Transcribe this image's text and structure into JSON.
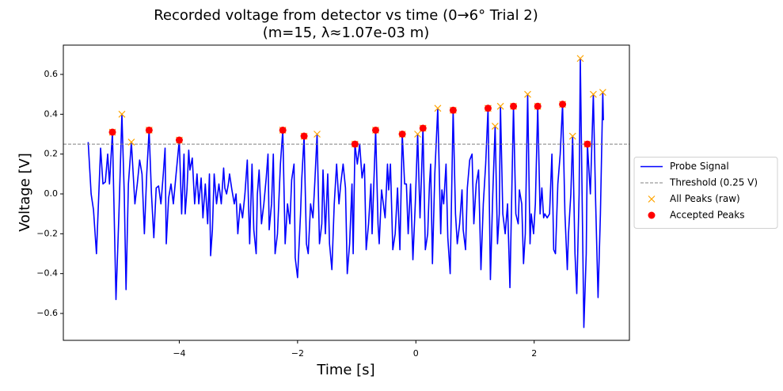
{
  "chart_data": {
    "type": "line",
    "title": [
      "Recorded voltage from detector vs time (0→6° Trial 2)",
      "(m=15, λ≈1.07e-03 m)"
    ],
    "x_label": "Time [s]",
    "y_label": "Voltage [V]",
    "xlim": [
      -5.96,
      3.61
    ],
    "ylim": [
      -0.735,
      0.747
    ],
    "xticks": [
      {
        "value": -4,
        "label": "−4"
      },
      {
        "value": -2,
        "label": "−2"
      },
      {
        "value": 0,
        "label": "0"
      },
      {
        "value": 2,
        "label": "2"
      }
    ],
    "yticks": [
      {
        "value": -0.6,
        "label": "−0.6"
      },
      {
        "value": -0.4,
        "label": "−0.4"
      },
      {
        "value": -0.2,
        "label": "−0.2"
      },
      {
        "value": 0,
        "label": "0.0"
      },
      0.2,
      0.4,
      0.6
    ],
    "legend": "right",
    "series": [
      {
        "name": "Probe Signal",
        "kind": "line",
        "color": "#0000ff",
        "x": [
          -5.54,
          -5.49,
          -5.45,
          -5.4,
          -5.33,
          -5.29,
          -5.25,
          -5.21,
          -5.18,
          -5.13,
          -5.07,
          -5.02,
          -4.97,
          -4.93,
          -4.9,
          -4.86,
          -4.81,
          -4.75,
          -4.71,
          -4.67,
          -4.63,
          -4.59,
          -4.55,
          -4.51,
          -4.47,
          -4.43,
          -4.39,
          -4.35,
          -4.31,
          -4.27,
          -4.24,
          -4.22,
          -4.18,
          -4.14,
          -4.1,
          -4.06,
          -4.0,
          -3.96,
          -3.92,
          -3.9,
          -3.87,
          -3.84,
          -3.82,
          -3.78,
          -3.74,
          -3.7,
          -3.67,
          -3.63,
          -3.6,
          -3.56,
          -3.52,
          -3.49,
          -3.47,
          -3.44,
          -3.41,
          -3.37,
          -3.33,
          -3.29,
          -3.25,
          -3.23,
          -3.2,
          -3.17,
          -3.15,
          -3.11,
          -3.07,
          -3.04,
          -3.01,
          -2.97,
          -2.93,
          -2.89,
          -2.85,
          -2.81,
          -2.77,
          -2.74,
          -2.7,
          -2.68,
          -2.65,
          -2.61,
          -2.57,
          -2.53,
          -2.5,
          -2.48,
          -2.44,
          -2.41,
          -2.38,
          -2.34,
          -2.29,
          -2.25,
          -2.21,
          -2.17,
          -2.13,
          -2.1,
          -2.06,
          -2.04,
          -2.0,
          -1.95,
          -1.93,
          -1.89,
          -1.85,
          -1.82,
          -1.78,
          -1.74,
          -1.71,
          -1.67,
          -1.63,
          -1.59,
          -1.57,
          -1.53,
          -1.49,
          -1.46,
          -1.42,
          -1.38,
          -1.34,
          -1.3,
          -1.27,
          -1.23,
          -1.19,
          -1.16,
          -1.12,
          -1.08,
          -1.06,
          -1.03,
          -0.99,
          -0.95,
          -0.91,
          -0.87,
          -0.84,
          -0.8,
          -0.76,
          -0.74,
          -0.68,
          -0.64,
          -0.62,
          -0.58,
          -0.55,
          -0.52,
          -0.48,
          -0.46,
          -0.43,
          -0.39,
          -0.35,
          -0.31,
          -0.27,
          -0.23,
          -0.19,
          -0.16,
          -0.13,
          -0.09,
          -0.05,
          -0.01,
          0.03,
          0.07,
          0.09,
          0.12,
          0.16,
          0.2,
          0.23,
          0.25,
          0.28,
          0.32,
          0.37,
          0.42,
          0.44,
          0.47,
          0.51,
          0.54,
          0.58,
          0.63,
          0.67,
          0.7,
          0.74,
          0.78,
          0.8,
          0.84,
          0.87,
          0.91,
          0.95,
          0.98,
          1.02,
          1.06,
          1.1,
          1.14,
          1.18,
          1.22,
          1.26,
          1.3,
          1.34,
          1.38,
          1.41,
          1.43,
          1.47,
          1.51,
          1.55,
          1.59,
          1.65,
          1.69,
          1.73,
          1.75,
          1.79,
          1.82,
          1.85,
          1.89,
          1.93,
          1.95,
          1.99,
          2.02,
          2.06,
          2.1,
          2.13,
          2.16,
          2.18,
          2.22,
          2.26,
          2.3,
          2.33,
          2.36,
          2.4,
          2.44,
          2.48,
          2.52,
          2.56,
          2.58,
          2.62,
          2.65,
          2.69,
          2.72,
          2.76,
          2.78,
          2.81,
          2.84,
          2.88,
          2.9,
          2.95,
          3.0,
          3.04,
          3.08,
          3.12,
          3.16,
          3.17
        ],
        "values": [
          0.26,
          0.0,
          -0.08,
          -0.3,
          0.23,
          0.05,
          0.06,
          0.2,
          0.05,
          0.31,
          -0.53,
          -0.1,
          0.4,
          0.0,
          -0.48,
          0.05,
          0.26,
          -0.05,
          0.05,
          0.17,
          0.1,
          -0.2,
          0.1,
          0.32,
          0.0,
          -0.22,
          0.03,
          0.04,
          -0.05,
          0.1,
          0.23,
          -0.25,
          -0.02,
          0.05,
          -0.05,
          0.08,
          0.27,
          -0.1,
          0.2,
          -0.1,
          0.02,
          0.22,
          0.12,
          0.18,
          -0.05,
          0.1,
          -0.05,
          0.08,
          -0.12,
          0.05,
          -0.15,
          0.1,
          -0.31,
          -0.18,
          0.1,
          -0.05,
          0.05,
          -0.05,
          0.13,
          0.03,
          0.0,
          0.05,
          0.1,
          0.02,
          -0.05,
          0.0,
          -0.2,
          -0.05,
          -0.12,
          0.0,
          0.17,
          -0.25,
          0.15,
          -0.18,
          -0.3,
          0.0,
          0.12,
          -0.15,
          -0.05,
          0.08,
          0.2,
          -0.18,
          -0.05,
          0.2,
          -0.3,
          -0.2,
          0.15,
          0.32,
          -0.25,
          -0.05,
          -0.15,
          0.07,
          0.15,
          -0.32,
          -0.42,
          -0.1,
          0.07,
          0.29,
          -0.25,
          -0.3,
          -0.05,
          -0.12,
          0.05,
          0.3,
          -0.25,
          -0.15,
          0.12,
          -0.2,
          0.1,
          -0.25,
          -0.38,
          -0.05,
          0.15,
          -0.05,
          0.05,
          0.15,
          0.03,
          -0.4,
          -0.25,
          0.05,
          -0.3,
          0.25,
          0.15,
          0.25,
          0.08,
          0.15,
          -0.28,
          -0.15,
          0.05,
          -0.2,
          0.32,
          -0.15,
          -0.25,
          0.02,
          -0.05,
          -0.12,
          0.15,
          0.02,
          0.15,
          -0.28,
          -0.2,
          0.03,
          -0.28,
          0.3,
          0.05,
          0.05,
          -0.2,
          0.05,
          -0.33,
          -0.05,
          0.3,
          -0.12,
          0.05,
          0.33,
          -0.28,
          -0.2,
          0.05,
          0.15,
          -0.35,
          0.1,
          0.43,
          -0.2,
          0.02,
          -0.05,
          0.15,
          -0.22,
          -0.4,
          0.42,
          -0.1,
          -0.25,
          -0.15,
          0.02,
          -0.18,
          -0.28,
          0.03,
          0.17,
          0.2,
          -0.15,
          0.05,
          0.12,
          -0.38,
          -0.05,
          0.15,
          0.43,
          -0.43,
          0.0,
          0.34,
          -0.25,
          -0.1,
          0.44,
          -0.1,
          -0.2,
          -0.05,
          -0.47,
          0.44,
          -0.1,
          -0.15,
          0.02,
          -0.05,
          -0.35,
          -0.2,
          0.5,
          -0.25,
          -0.1,
          -0.2,
          -0.05,
          0.44,
          -0.1,
          0.03,
          -0.12,
          -0.1,
          -0.12,
          -0.1,
          0.2,
          -0.28,
          -0.3,
          0.05,
          0.2,
          0.45,
          -0.1,
          -0.38,
          -0.2,
          0.0,
          0.29,
          -0.3,
          -0.5,
          0.0,
          0.68,
          0.0,
          -0.67,
          -0.3,
          0.25,
          0.0,
          0.5,
          -0.05,
          -0.52,
          -0.1,
          0.51,
          0.37
        ]
      },
      {
        "name": "Threshold (0.25 V)",
        "kind": "hline",
        "color": "#808080",
        "values": [
          0.25
        ]
      },
      {
        "name": "All Peaks (raw)",
        "kind": "marker-x",
        "color": "#ffa500",
        "x": [
          -5.13,
          -4.97,
          -4.81,
          -4.51,
          -4.0,
          -2.25,
          -1.89,
          -1.67,
          -1.03,
          -0.68,
          -0.23,
          0.03,
          0.12,
          0.37,
          0.63,
          1.22,
          1.34,
          1.43,
          1.65,
          1.89,
          2.06,
          2.48,
          2.65,
          2.78,
          2.9,
          3.0,
          3.16
        ],
        "values": [
          0.31,
          0.4,
          0.26,
          0.32,
          0.27,
          0.32,
          0.29,
          0.3,
          0.25,
          0.32,
          0.3,
          0.3,
          0.33,
          0.43,
          0.42,
          0.43,
          0.34,
          0.44,
          0.44,
          0.5,
          0.44,
          0.45,
          0.29,
          0.68,
          0.25,
          0.5,
          0.51
        ]
      },
      {
        "name": "Accepted Peaks",
        "kind": "marker-o",
        "color": "#ff0000",
        "x": [
          -5.13,
          -4.51,
          -4.0,
          -2.25,
          -1.89,
          -1.03,
          -0.68,
          -0.23,
          0.12,
          0.63,
          1.22,
          1.65,
          2.06,
          2.48,
          2.9
        ],
        "values": [
          0.31,
          0.32,
          0.27,
          0.32,
          0.29,
          0.25,
          0.32,
          0.3,
          0.33,
          0.42,
          0.43,
          0.44,
          0.44,
          0.45,
          0.25
        ]
      }
    ]
  }
}
